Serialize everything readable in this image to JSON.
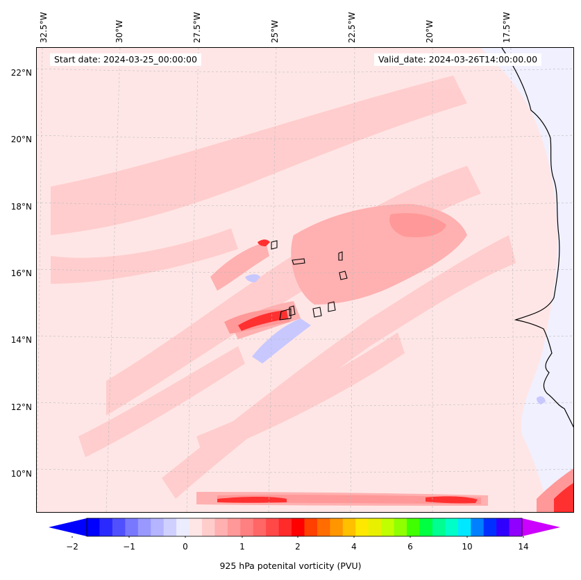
{
  "map": {
    "start_date": "Start date: 2024-03-25_00:00:00",
    "valid_date": "Valid_date: 2024-03-26T14:00:00.00",
    "lon_labels": [
      "32.5°W",
      "30°W",
      "27.5°W",
      "25°W",
      "22.5°W",
      "20°W",
      "17.5°W"
    ],
    "lat_labels": [
      "22°N",
      "20°N",
      "18°N",
      "16°N",
      "14°N",
      "12°N",
      "10°N"
    ],
    "background_color": "#ffe6e6",
    "ocean_east_color": "#f0f0ff"
  },
  "colorbar": {
    "label": "925 hPa potenital vorticity (PVU)",
    "ticks": [
      "−2",
      "−1",
      "0",
      "1",
      "2",
      "4",
      "6",
      "10",
      "14"
    ],
    "colors": [
      "#0000ff",
      "#2a2aff",
      "#5050ff",
      "#7878ff",
      "#9898ff",
      "#b4b4ff",
      "#d0d0ff",
      "#ececff",
      "#ffe6e6",
      "#ffcccc",
      "#ffb0b0",
      "#ff9898",
      "#ff8080",
      "#ff6666",
      "#ff4848",
      "#ff2a2a",
      "#ff0000",
      "#ff4000",
      "#ff6c00",
      "#ff9600",
      "#ffc000",
      "#ffe800",
      "#e8f000",
      "#c0ff00",
      "#90ff00",
      "#40ff00",
      "#00ff40",
      "#00ff90",
      "#00ffc8",
      "#00e8ff",
      "#0080ff",
      "#0030ff",
      "#3000ff",
      "#9000ff"
    ],
    "min_color": "#0000ff",
    "max_color": "#cc00ff"
  }
}
